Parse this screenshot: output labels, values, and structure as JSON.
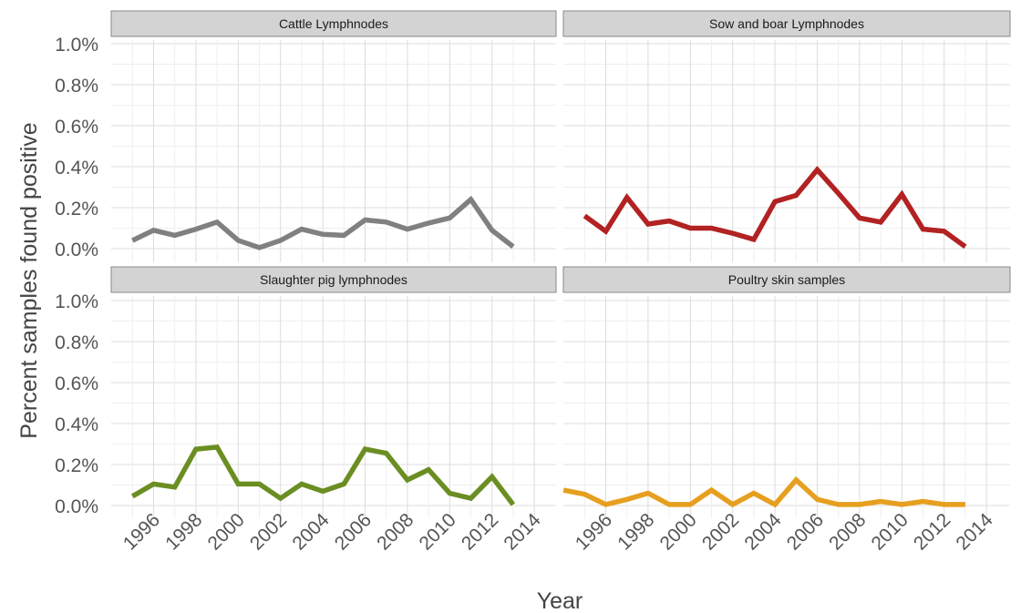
{
  "chart_data": {
    "type": "line",
    "xlabel": "Year",
    "ylabel": "Percent samples found positive",
    "ylim": [
      0,
      1.0
    ],
    "y_unit": "%",
    "y_ticks": [
      "0.0%",
      "0.2%",
      "0.4%",
      "0.6%",
      "0.8%",
      "1.0%"
    ],
    "x_ticks": [
      "1996",
      "1998",
      "2000",
      "2002",
      "2004",
      "2006",
      "2008",
      "2010",
      "2012",
      "2014"
    ],
    "grid": true,
    "layout": "facet 2x2",
    "panels": [
      {
        "title": "Cattle Lymphnodes",
        "color": "#808080",
        "x": [
          1995,
          1996,
          1997,
          1998,
          1999,
          2000,
          2001,
          2002,
          2003,
          2004,
          2005,
          2006,
          2007,
          2008,
          2009,
          2010,
          2011,
          2012,
          2013,
          2014
        ],
        "values": [
          0.04,
          0.09,
          0.065,
          0.095,
          0.13,
          0.04,
          0.005,
          0.04,
          0.095,
          0.07,
          0.065,
          0.14,
          0.13,
          0.095,
          0.125,
          0.15,
          0.24,
          0.09,
          0.01,
          null
        ]
      },
      {
        "title": "Sow and boar Lymphnodes",
        "color": "#B22222",
        "x": [
          1995,
          1996,
          1997,
          1998,
          1999,
          2000,
          2001,
          2002,
          2003,
          2004,
          2005,
          2006,
          2007,
          2008,
          2009,
          2010,
          2011,
          2012,
          2013,
          2014
        ],
        "values": [
          0.16,
          0.085,
          0.25,
          0.12,
          0.135,
          0.1,
          0.1,
          0.075,
          0.045,
          0.23,
          0.26,
          0.385,
          0.27,
          0.15,
          0.13,
          0.265,
          0.095,
          0.085,
          0.01,
          null
        ]
      },
      {
        "title": "Slaughter pig lymphnodes",
        "color": "#6B8E23",
        "x": [
          1995,
          1996,
          1997,
          1998,
          1999,
          2000,
          2001,
          2002,
          2003,
          2004,
          2005,
          2006,
          2007,
          2008,
          2009,
          2010,
          2011,
          2012,
          2013,
          2014
        ],
        "values": [
          0.045,
          0.105,
          0.09,
          0.275,
          0.285,
          0.105,
          0.105,
          0.035,
          0.105,
          0.07,
          0.105,
          0.275,
          0.255,
          0.125,
          0.175,
          0.06,
          0.035,
          0.14,
          0.005,
          null
        ]
      },
      {
        "title": "Poultry skin samples",
        "color": "#E69F1E",
        "x": [
          1994,
          1995,
          1996,
          1997,
          1998,
          1999,
          2000,
          2001,
          2002,
          2003,
          2004,
          2005,
          2006,
          2007,
          2008,
          2009,
          2010,
          2011,
          2012,
          2013,
          2014
        ],
        "values": [
          0.075,
          0.055,
          0.005,
          0.03,
          0.06,
          0.005,
          0.005,
          0.075,
          0.005,
          0.06,
          0.005,
          0.125,
          0.03,
          0.005,
          0.005,
          0.02,
          0.005,
          0.02,
          0.005,
          0.005,
          null
        ]
      }
    ]
  }
}
